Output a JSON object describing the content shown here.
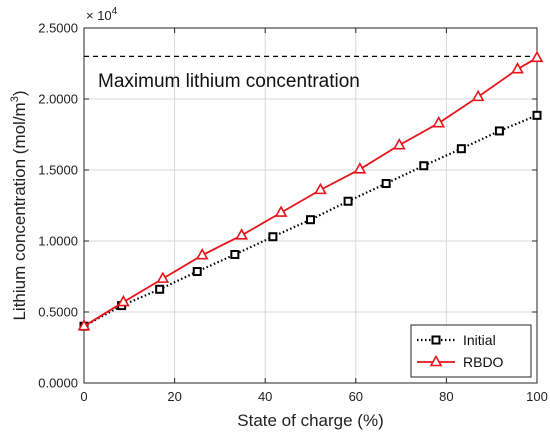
{
  "chart_data": {
    "type": "line",
    "xlabel": "State of charge (%)",
    "ylabel_main": "Lithium concentration (mol/m",
    "ylabel_sup": "3",
    "ylabel_close": ")",
    "exponent_label": "× 10",
    "exponent_power": "4",
    "xlim": [
      0,
      100
    ],
    "ylim": [
      0.0,
      2.5
    ],
    "x_ticks": [
      0,
      20,
      40,
      60,
      80,
      100
    ],
    "x_tick_labels": [
      "0",
      "20",
      "40",
      "60",
      "80",
      "100"
    ],
    "y_ticks": [
      0.0,
      0.5,
      1.0,
      1.5,
      2.0,
      2.5
    ],
    "y_tick_labels": [
      "0.0000",
      "0.5000",
      "1.0000",
      "1.5000",
      "2.0000",
      "2.5000"
    ],
    "grid": true,
    "legend_position": "bottom-right",
    "reference_line": {
      "y": 2.3,
      "style": "dashed",
      "color": "#000000"
    },
    "annotation": "Maximum lithium concentration",
    "series": [
      {
        "name": "Initial",
        "color": "#000000",
        "line_style": "dotted",
        "marker": "square",
        "x": [
          0,
          8.3,
          16.7,
          25,
          33.3,
          41.7,
          50,
          58.3,
          66.7,
          75,
          83.3,
          91.7,
          100
        ],
        "y": [
          0.4,
          0.545,
          0.66,
          0.785,
          0.905,
          1.03,
          1.15,
          1.28,
          1.405,
          1.53,
          1.65,
          1.775,
          1.885
        ]
      },
      {
        "name": "RBDO",
        "color": "#e8141b",
        "line_style": "solid",
        "marker": "triangle",
        "x": [
          0,
          8.7,
          17.4,
          26.1,
          34.8,
          43.5,
          52.2,
          60.9,
          69.6,
          78.3,
          87,
          95.7,
          100
        ],
        "y": [
          0.4,
          0.57,
          0.735,
          0.9,
          1.04,
          1.2,
          1.36,
          1.505,
          1.675,
          1.83,
          2.015,
          2.21,
          2.29
        ]
      }
    ]
  }
}
